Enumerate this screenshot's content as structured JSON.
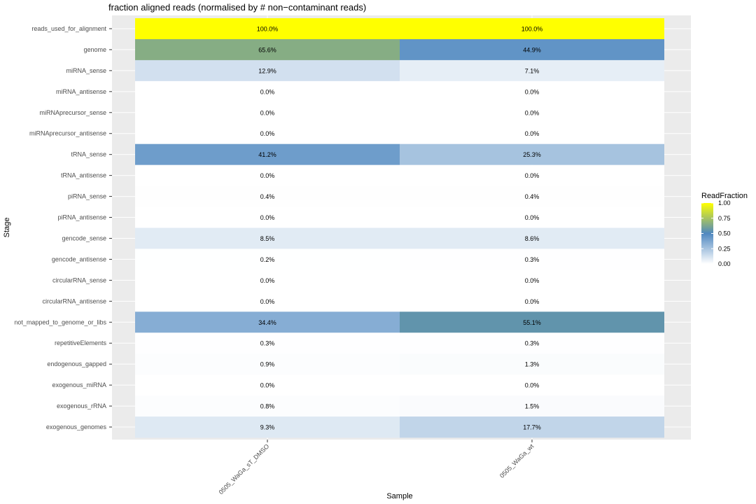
{
  "chart_data": {
    "type": "heatmap",
    "title": "fraction aligned reads (normalised by # non−contaminant reads)",
    "xlabel": "Sample",
    "ylabel": "Stage",
    "x": [
      "0505_WaGa_sT_DMSO",
      "0505_WaGa_wt"
    ],
    "y": [
      "reads_used_for_alignment",
      "genome",
      "miRNA_sense",
      "miRNA_antisense",
      "miRNAprecursor_sense",
      "miRNAprecursor_antisense",
      "tRNA_sense",
      "tRNA_antisense",
      "piRNA_sense",
      "piRNA_antisense",
      "gencode_sense",
      "gencode_antisense",
      "circularRNA_sense",
      "circularRNA_antisense",
      "not_mapped_to_genome_or_libs",
      "repetitiveElements",
      "endogenous_gapped",
      "exogenous_miRNA",
      "exogenous_rRNA",
      "exogenous_genomes"
    ],
    "values": [
      [
        1.0,
        1.0
      ],
      [
        0.656,
        0.449
      ],
      [
        0.129,
        0.071
      ],
      [
        0.0,
        0.0
      ],
      [
        0.0,
        0.0
      ],
      [
        0.0,
        0.0
      ],
      [
        0.412,
        0.253
      ],
      [
        0.0,
        0.0
      ],
      [
        0.004,
        0.004
      ],
      [
        0.0,
        0.0
      ],
      [
        0.085,
        0.086
      ],
      [
        0.002,
        0.003
      ],
      [
        0.0,
        0.0
      ],
      [
        0.0,
        0.0
      ],
      [
        0.344,
        0.551
      ],
      [
        0.003,
        0.003
      ],
      [
        0.009,
        0.013
      ],
      [
        0.0,
        0.0
      ],
      [
        0.008,
        0.015
      ],
      [
        0.093,
        0.177
      ]
    ],
    "cell_labels": [
      [
        "100.0%",
        "100.0%"
      ],
      [
        "65.6%",
        "44.9%"
      ],
      [
        "12.9%",
        "7.1%"
      ],
      [
        "0.0%",
        "0.0%"
      ],
      [
        "0.0%",
        "0.0%"
      ],
      [
        "0.0%",
        "0.0%"
      ],
      [
        "41.2%",
        "25.3%"
      ],
      [
        "0.0%",
        "0.0%"
      ],
      [
        "0.4%",
        "0.4%"
      ],
      [
        "0.0%",
        "0.0%"
      ],
      [
        "8.5%",
        "8.6%"
      ],
      [
        "0.2%",
        "0.3%"
      ],
      [
        "0.0%",
        "0.0%"
      ],
      [
        "0.0%",
        "0.0%"
      ],
      [
        "34.4%",
        "55.1%"
      ],
      [
        "0.3%",
        "0.3%"
      ],
      [
        "0.9%",
        "1.3%"
      ],
      [
        "0.0%",
        "0.0%"
      ],
      [
        "0.8%",
        "1.5%"
      ],
      [
        "9.3%",
        "17.7%"
      ]
    ],
    "legend": {
      "title": "ReadFraction",
      "placement": "right",
      "ticks": [
        1.0,
        0.75,
        0.5,
        0.25,
        0.0
      ],
      "tick_labels": [
        "1.00",
        "0.75",
        "0.50",
        "0.25",
        "0.00"
      ]
    },
    "color_scale": {
      "domain": [
        0,
        0.5,
        1
      ],
      "colors": [
        "#ffffff",
        "#4f88c0",
        "#ffff00"
      ]
    },
    "grid": true,
    "panel_background": "#ebebeb"
  }
}
